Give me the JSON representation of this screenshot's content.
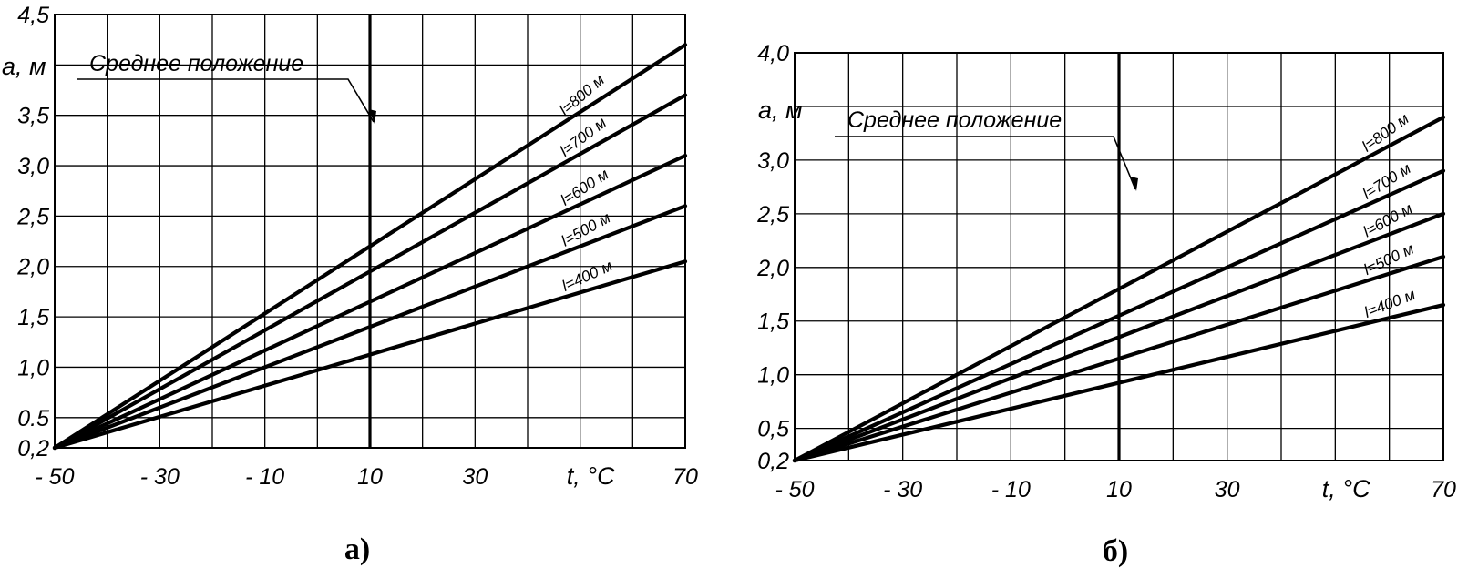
{
  "chart_data": [
    {
      "type": "line",
      "panel_label": "а)",
      "xlabel": "t, °C",
      "ylabel": "a, м",
      "xlim": [
        -50,
        70
      ],
      "ylim": [
        0.2,
        4.5
      ],
      "x_ticks": [
        -50,
        -30,
        -10,
        10,
        30,
        70
      ],
      "x_tick_labels": [
        "- 50",
        "- 30",
        "- 10",
        "10",
        "30",
        "70"
      ],
      "y_ticks": [
        0.2,
        0.5,
        1.0,
        1.5,
        2.0,
        2.5,
        3.0,
        3.5,
        4.0,
        4.5
      ],
      "y_tick_labels": [
        "0,2",
        "0.5",
        "1,0",
        "1,5",
        "2,0",
        "2,5",
        "3,0",
        "3,5",
        "",
        "4,5"
      ],
      "x_grid": [
        -50,
        -40,
        -30,
        -20,
        -10,
        0,
        10,
        20,
        30,
        40,
        50,
        60,
        70
      ],
      "y_grid": [
        0.2,
        0.5,
        1.0,
        1.5,
        2.0,
        2.5,
        3.0,
        3.5,
        4.0,
        4.5
      ],
      "grid": true,
      "mean_position": {
        "x": 10,
        "label": "Среднее положение"
      },
      "series": [
        {
          "name": "l=800 м",
          "x": [
            -50,
            70
          ],
          "y": [
            0.2,
            4.2
          ]
        },
        {
          "name": "l=700 м",
          "x": [
            -50,
            70
          ],
          "y": [
            0.2,
            3.7
          ]
        },
        {
          "name": "l=600 м",
          "x": [
            -50,
            70
          ],
          "y": [
            0.2,
            3.1
          ]
        },
        {
          "name": "l=500 м",
          "x": [
            -50,
            70
          ],
          "y": [
            0.2,
            2.6
          ]
        },
        {
          "name": "l=400 м",
          "x": [
            -50,
            70
          ],
          "y": [
            0.2,
            2.05
          ]
        }
      ]
    },
    {
      "type": "line",
      "panel_label": "б)",
      "xlabel": "t, °C",
      "ylabel": "a, м",
      "xlim": [
        -50,
        70
      ],
      "ylim": [
        0.2,
        4.0
      ],
      "x_ticks": [
        -50,
        -30,
        -10,
        10,
        30,
        70
      ],
      "x_tick_labels": [
        "- 50",
        "- 30",
        "- 10",
        "10",
        "30",
        "70"
      ],
      "y_ticks": [
        0.2,
        0.5,
        1.0,
        1.5,
        2.0,
        2.5,
        3.0,
        3.5,
        4.0
      ],
      "y_tick_labels": [
        "0,2",
        "0,5",
        "1,0",
        "1,5",
        "2,0",
        "2,5",
        "3,0",
        "",
        "4,0"
      ],
      "x_grid": [
        -50,
        -40,
        -30,
        -20,
        -10,
        0,
        10,
        20,
        30,
        40,
        50,
        60,
        70
      ],
      "y_grid": [
        0.2,
        0.5,
        1.0,
        1.5,
        2.0,
        2.5,
        3.0,
        3.5,
        4.0
      ],
      "grid": true,
      "mean_position": {
        "x": 10,
        "label": "Среднее положение"
      },
      "series": [
        {
          "name": "l=800 м",
          "x": [
            -50,
            70
          ],
          "y": [
            0.2,
            3.4
          ]
        },
        {
          "name": "l=700 м",
          "x": [
            -50,
            70
          ],
          "y": [
            0.2,
            2.9
          ]
        },
        {
          "name": "l=600 м",
          "x": [
            -50,
            70
          ],
          "y": [
            0.2,
            2.5
          ]
        },
        {
          "name": "l=500 м",
          "x": [
            -50,
            70
          ],
          "y": [
            0.2,
            2.1
          ]
        },
        {
          "name": "l=400 м",
          "x": [
            -50,
            70
          ],
          "y": [
            0.2,
            1.65
          ]
        }
      ]
    }
  ]
}
